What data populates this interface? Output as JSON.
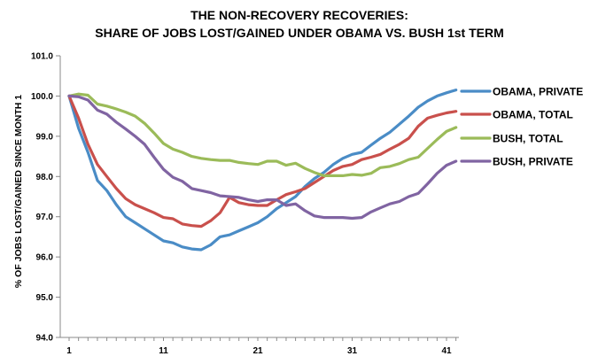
{
  "chart_data": {
    "type": "line",
    "title": [
      "THE NON-RECOVERY RECOVERIES:",
      "SHARE OF JOBS LOST/GAINED UNDER OBAMA VS. BUSH  1st TERM"
    ],
    "xlabel": "",
    "ylabel": "% OF JOBS LOST/GAINED SINCE MONTH 1",
    "xlim": [
      1,
      42
    ],
    "ylim": [
      94.0,
      101.0
    ],
    "x_ticks": [
      1,
      11,
      21,
      31,
      41
    ],
    "x_tick_labels": [
      "1",
      "11",
      "21",
      "31",
      "41"
    ],
    "y_ticks": [
      94.0,
      95.0,
      96.0,
      97.0,
      98.0,
      99.0,
      100.0,
      101.0
    ],
    "y_tick_labels": [
      "94.0",
      "95.0",
      "96.0",
      "97.0",
      "98.0",
      "99.0",
      "100.0",
      "101.0"
    ],
    "grid": false,
    "legend_position": "right",
    "x": [
      1,
      2,
      3,
      4,
      5,
      6,
      7,
      8,
      9,
      10,
      11,
      12,
      13,
      14,
      15,
      16,
      17,
      18,
      19,
      20,
      21,
      22,
      23,
      24,
      25,
      26,
      27,
      28,
      29,
      30,
      31,
      32,
      33,
      34,
      35,
      36,
      37,
      38,
      39,
      40,
      41,
      42
    ],
    "series": [
      {
        "name": "OBAMA, PRIVATE",
        "color": "#4A8CC6",
        "values": [
          100.0,
          99.2,
          98.6,
          97.9,
          97.65,
          97.3,
          97.0,
          96.85,
          96.7,
          96.55,
          96.4,
          96.35,
          96.25,
          96.2,
          96.18,
          96.3,
          96.5,
          96.55,
          96.65,
          96.75,
          96.85,
          97.0,
          97.2,
          97.35,
          97.5,
          97.75,
          97.95,
          98.1,
          98.3,
          98.45,
          98.55,
          98.6,
          98.78,
          98.95,
          99.1,
          99.3,
          99.5,
          99.72,
          99.88,
          100.0,
          100.08,
          100.15
        ]
      },
      {
        "name": "OBAMA, TOTAL",
        "color": "#C9504C",
        "values": [
          100.0,
          99.45,
          98.8,
          98.3,
          98.0,
          97.7,
          97.45,
          97.3,
          97.2,
          97.1,
          96.98,
          96.95,
          96.82,
          96.78,
          96.76,
          96.9,
          97.1,
          97.48,
          97.35,
          97.3,
          97.28,
          97.28,
          97.42,
          97.55,
          97.62,
          97.7,
          97.85,
          98.0,
          98.15,
          98.25,
          98.3,
          98.42,
          98.48,
          98.55,
          98.68,
          98.8,
          98.95,
          99.25,
          99.45,
          99.52,
          99.58,
          99.62
        ]
      },
      {
        "name": "BUSH, TOTAL",
        "color": "#9BBB59",
        "values": [
          100.0,
          100.05,
          100.02,
          99.8,
          99.75,
          99.68,
          99.6,
          99.5,
          99.32,
          99.08,
          98.82,
          98.68,
          98.6,
          98.5,
          98.45,
          98.42,
          98.4,
          98.4,
          98.35,
          98.32,
          98.3,
          98.38,
          98.38,
          98.28,
          98.33,
          98.2,
          98.1,
          98.02,
          98.02,
          98.02,
          98.05,
          98.03,
          98.08,
          98.22,
          98.25,
          98.32,
          98.42,
          98.48,
          98.7,
          98.92,
          99.12,
          99.22
        ]
      },
      {
        "name": "BUSH, PRIVATE",
        "color": "#8064A2",
        "values": [
          100.0,
          99.98,
          99.9,
          99.65,
          99.55,
          99.35,
          99.18,
          99.0,
          98.8,
          98.48,
          98.18,
          97.98,
          97.88,
          97.7,
          97.65,
          97.6,
          97.52,
          97.5,
          97.48,
          97.42,
          97.38,
          97.42,
          97.42,
          97.28,
          97.32,
          97.15,
          97.02,
          96.98,
          96.98,
          96.98,
          96.96,
          96.98,
          97.12,
          97.22,
          97.32,
          97.38,
          97.5,
          97.58,
          97.82,
          98.08,
          98.28,
          98.38
        ]
      }
    ]
  }
}
